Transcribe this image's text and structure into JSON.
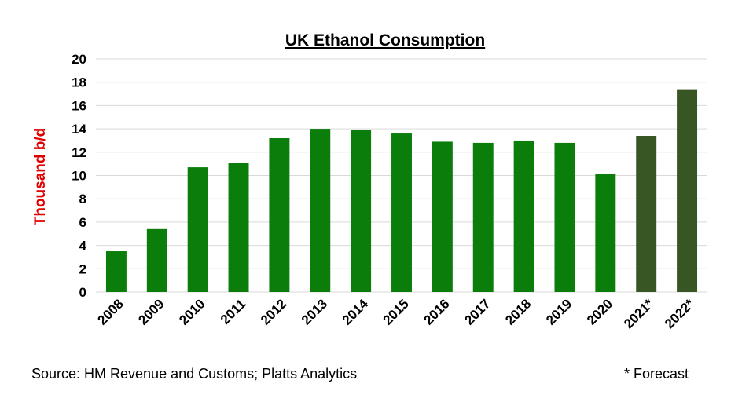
{
  "chart_data": {
    "type": "bar",
    "title": "UK Ethanol Consumption",
    "ylabel": "Thousand b/d",
    "xlabel": "",
    "ylim": [
      0,
      20
    ],
    "yticks": [
      0,
      2,
      4,
      6,
      8,
      10,
      12,
      14,
      16,
      18,
      20
    ],
    "grid": true,
    "categories": [
      "2008",
      "2009",
      "2010",
      "2011",
      "2012",
      "2013",
      "2014",
      "2015",
      "2016",
      "2017",
      "2018",
      "2019",
      "2020",
      "2021*",
      "2022*"
    ],
    "values": [
      3.5,
      5.4,
      10.7,
      11.1,
      13.2,
      14.0,
      13.9,
      13.6,
      12.9,
      12.8,
      13.0,
      12.8,
      10.1,
      13.4,
      17.4
    ],
    "colors": {
      "actual": "#0a7d0a",
      "forecast": "#375623"
    },
    "forecast_categories": [
      "2021*",
      "2022*"
    ]
  },
  "footer": {
    "source": "Source: HM Revenue and Customs; Platts Analytics",
    "forecast_note": "* Forecast"
  }
}
